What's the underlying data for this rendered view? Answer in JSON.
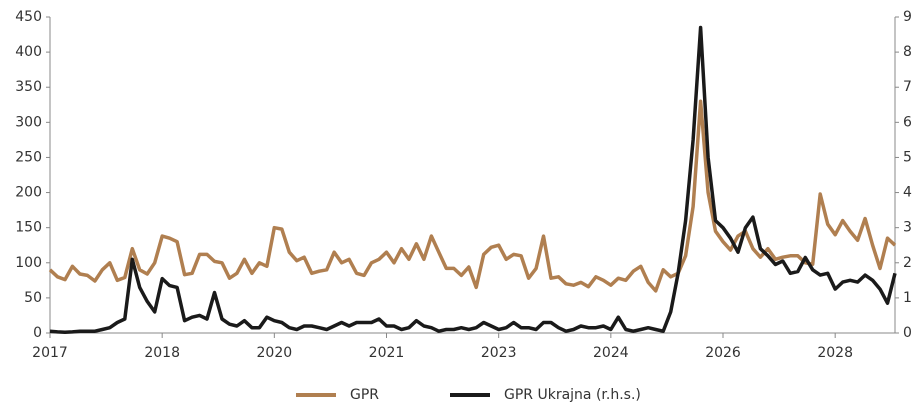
{
  "chart_data": {
    "type": "line",
    "categories": [
      "2017",
      null,
      null,
      null,
      null,
      null,
      null,
      null,
      null,
      null,
      null,
      null,
      null,
      null,
      null,
      "2018",
      null,
      null,
      null,
      null,
      null,
      null,
      null,
      null,
      null,
      null,
      null,
      null,
      null,
      null,
      "2020",
      null,
      null,
      null,
      null,
      null,
      null,
      null,
      null,
      null,
      null,
      null,
      null,
      null,
      null,
      "2021",
      null,
      null,
      null,
      null,
      null,
      null,
      null,
      null,
      null,
      null,
      null,
      null,
      null,
      null,
      "2023",
      null,
      null,
      null,
      null,
      null,
      null,
      null,
      null,
      null,
      null,
      null,
      null,
      null,
      null,
      "2024",
      null,
      null,
      null,
      null,
      null,
      null,
      null,
      null,
      null,
      null,
      null,
      null,
      null,
      null,
      "2026",
      null,
      null,
      null,
      null,
      null,
      null,
      null,
      null,
      null,
      null,
      null,
      null,
      null,
      null,
      "2028",
      null,
      null,
      null,
      null,
      null,
      null,
      null,
      null
    ],
    "ylim": [
      0,
      450
    ],
    "yticks": [
      0,
      50,
      100,
      150,
      200,
      250,
      300,
      350,
      400,
      450
    ],
    "y2lim": [
      0,
      9
    ],
    "y2ticks": [
      0,
      1,
      2,
      3,
      4,
      5,
      6,
      7,
      8,
      9
    ],
    "grid": false,
    "legend": "bottom",
    "series": [
      {
        "name": "GPR",
        "color": "#b07f50",
        "values": [
          90,
          80,
          76,
          95,
          84,
          82,
          74,
          90,
          100,
          75,
          79,
          120,
          90,
          84,
          100,
          138,
          135,
          130,
          83,
          85,
          112,
          112,
          102,
          100,
          78,
          85,
          105,
          85,
          100,
          95,
          150,
          148,
          115,
          103,
          108,
          85,
          88,
          90,
          115,
          100,
          105,
          85,
          82,
          100,
          105,
          115,
          100,
          120,
          105,
          127,
          105,
          138,
          115,
          92,
          92,
          82,
          94,
          65,
          112,
          122,
          125,
          105,
          112,
          110,
          78,
          92,
          138,
          78,
          80,
          70,
          68,
          72,
          66,
          80,
          75,
          68,
          78,
          75,
          88,
          95,
          72,
          60,
          90,
          80,
          85,
          110,
          180,
          330,
          200,
          145,
          130,
          118,
          138,
          145,
          120,
          108,
          120,
          105,
          108,
          110,
          110,
          100,
          98,
          198,
          155,
          140,
          160,
          145,
          132,
          163,
          125,
          92,
          135,
          125
        ]
      },
      {
        "name": "GPR Ukrajna (r.h.s.)",
        "color": "#1a1a1a",
        "axis": "y2",
        "values": [
          0.05,
          0.03,
          0.02,
          0.03,
          0.05,
          0.05,
          0.05,
          0.1,
          0.15,
          0.3,
          0.4,
          2.1,
          1.3,
          0.9,
          0.6,
          1.55,
          1.35,
          1.3,
          0.35,
          0.45,
          0.5,
          0.4,
          1.15,
          0.4,
          0.25,
          0.2,
          0.35,
          0.15,
          0.15,
          0.45,
          0.35,
          0.3,
          0.15,
          0.1,
          0.2,
          0.2,
          0.15,
          0.1,
          0.2,
          0.3,
          0.2,
          0.3,
          0.3,
          0.3,
          0.4,
          0.2,
          0.2,
          0.1,
          0.15,
          0.35,
          0.2,
          0.15,
          0.05,
          0.1,
          0.1,
          0.15,
          0.1,
          0.15,
          0.3,
          0.2,
          0.1,
          0.15,
          0.3,
          0.15,
          0.15,
          0.1,
          0.3,
          0.3,
          0.15,
          0.05,
          0.1,
          0.2,
          0.15,
          0.15,
          0.2,
          0.1,
          0.45,
          0.1,
          0.05,
          0.1,
          0.15,
          0.1,
          0.05,
          0.6,
          1.7,
          3.2,
          5.5,
          8.7,
          5,
          3.2,
          3.0,
          2.7,
          2.3,
          3,
          3.3,
          2.4,
          2.2,
          1.95,
          2.05,
          1.7,
          1.75,
          2.15,
          1.8,
          1.65,
          1.7,
          1.25,
          1.45,
          1.5,
          1.45,
          1.65,
          1.5,
          1.25,
          0.85,
          1.7
        ]
      }
    ]
  }
}
